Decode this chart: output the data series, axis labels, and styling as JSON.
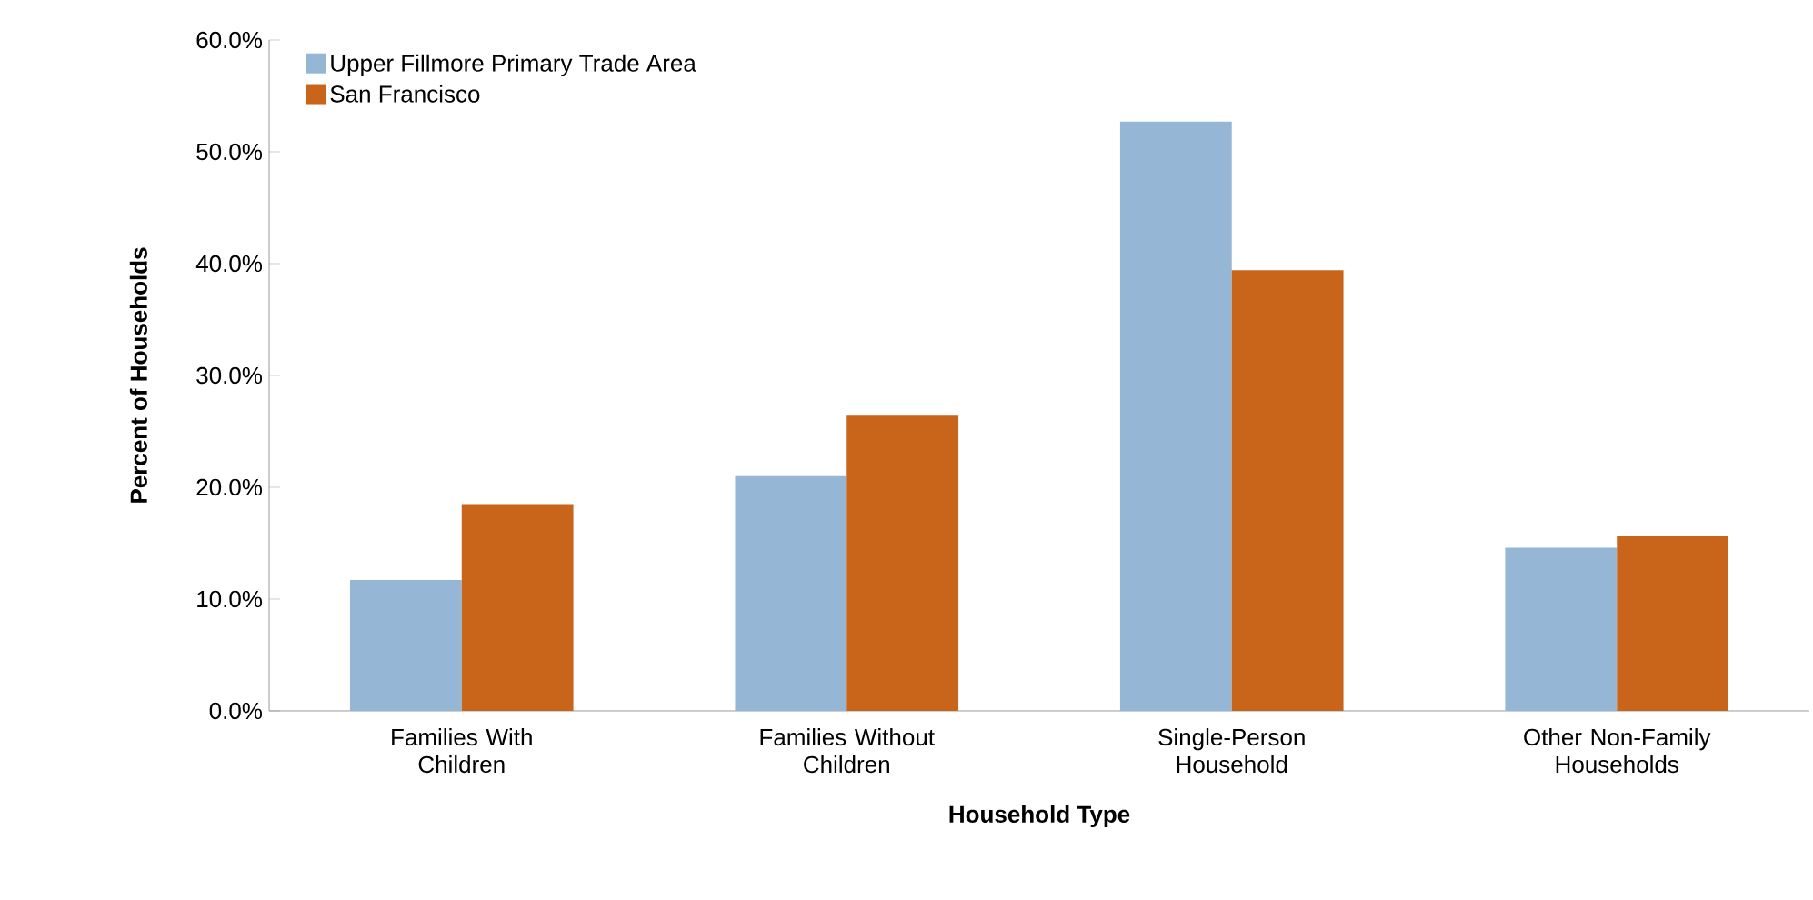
{
  "chart_data": {
    "type": "bar",
    "categories": [
      "Families With Children",
      "Families Without Children",
      "Single-Person Household",
      "Other Non-Family Households"
    ],
    "series": [
      {
        "name": "Upper Fillmore Primary Trade Area",
        "color": "#95b7d5",
        "values": [
          11.7,
          21.0,
          52.7,
          14.6
        ]
      },
      {
        "name": "San Francisco",
        "color": "#c8651b",
        "values": [
          18.5,
          26.4,
          39.4,
          15.6
        ]
      }
    ],
    "xlabel": "Household Type",
    "ylabel": "Percent of Households",
    "ylim": [
      0,
      60
    ],
    "yticks": [
      {
        "value": 0,
        "label": "0.0%"
      },
      {
        "value": 10,
        "label": "10.0%"
      },
      {
        "value": 20,
        "label": "20.0%"
      },
      {
        "value": 30,
        "label": "30.0%"
      },
      {
        "value": 40,
        "label": "40.0%"
      },
      {
        "value": 50,
        "label": "50.0%"
      },
      {
        "value": 60,
        "label": "60.0%"
      }
    ],
    "legend": "top left",
    "grid": false
  }
}
